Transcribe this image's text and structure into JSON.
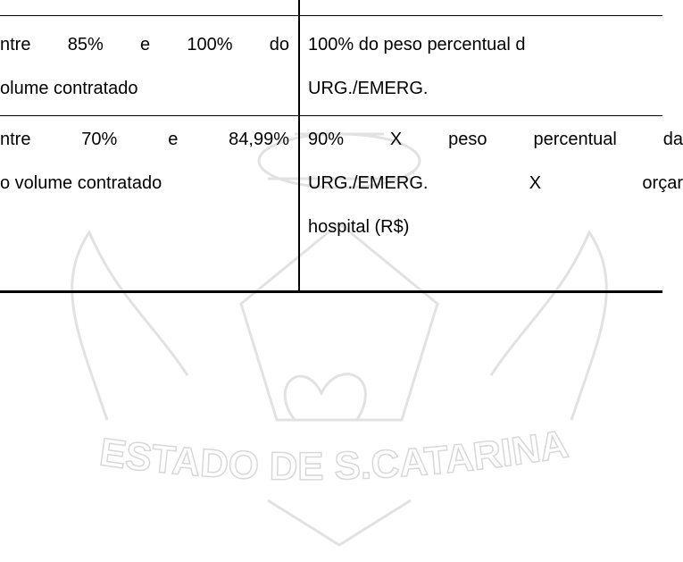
{
  "table": {
    "rows": [
      [
        [
          "ntre 85% e 100% do",
          "olume contratado"
        ],
        [
          "100% do peso percentual d",
          "URG./EMERG."
        ]
      ],
      [
        [
          "ntre 70% e 84,99%",
          "o volume contratado"
        ],
        [
          "90% X peso percentual da",
          "URG./EMERG. X orçar",
          "hospital (R$)"
        ]
      ]
    ]
  },
  "watermark": {
    "text": "ESTADO DE S.CATARINA"
  }
}
